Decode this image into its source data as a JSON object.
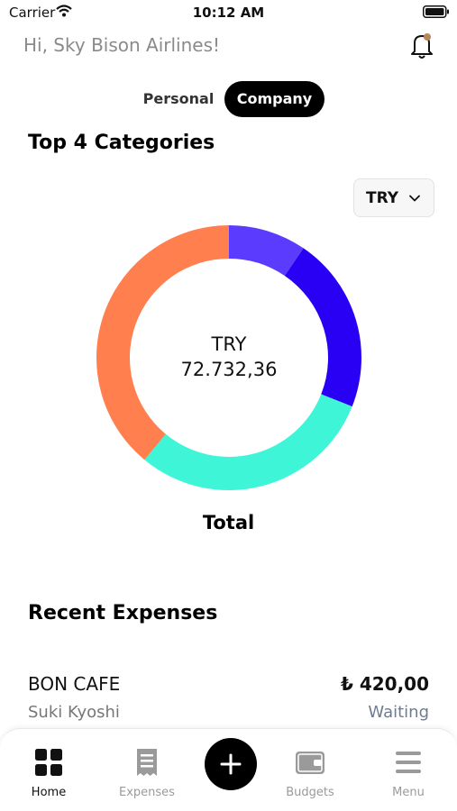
{
  "status_bar": {
    "carrier": "Carrier",
    "time": "10:12 AM"
  },
  "header": {
    "greeting": "Hi, Sky Bison Airlines!"
  },
  "segment": {
    "personal": "Personal",
    "company": "Company",
    "selected": "Company"
  },
  "categories": {
    "title": "Top 4 Categories",
    "currency": "TRY",
    "total_currency": "TRY",
    "total_amount": "72.732,36",
    "total_label": "Total"
  },
  "chart_data": {
    "type": "pie",
    "donut": true,
    "slices": [
      {
        "color": "#5b3cff",
        "fraction": 0.095
      },
      {
        "color": "#2a00f5",
        "fraction": 0.215
      },
      {
        "color": "#3ff5d8",
        "fraction": 0.3
      },
      {
        "color": "#ff7f4f",
        "fraction": 0.39
      }
    ]
  },
  "recent": {
    "title": "Recent Expenses",
    "items": [
      {
        "name": "BON CAFE",
        "amount": "₺ 420,00",
        "person": "Suki Kyoshi",
        "status": "Waiting"
      }
    ]
  },
  "tabs": [
    {
      "label": "Home",
      "icon": "grid-icon",
      "active": true
    },
    {
      "label": "Expenses",
      "icon": "receipt-icon"
    },
    {
      "label": "Budgets",
      "icon": "wallet-icon"
    },
    {
      "label": "Menu",
      "icon": "menu-icon"
    }
  ],
  "colors": {
    "accent": "#000000",
    "notification": "#b8875a",
    "status_waiting": "#6f7c90"
  }
}
